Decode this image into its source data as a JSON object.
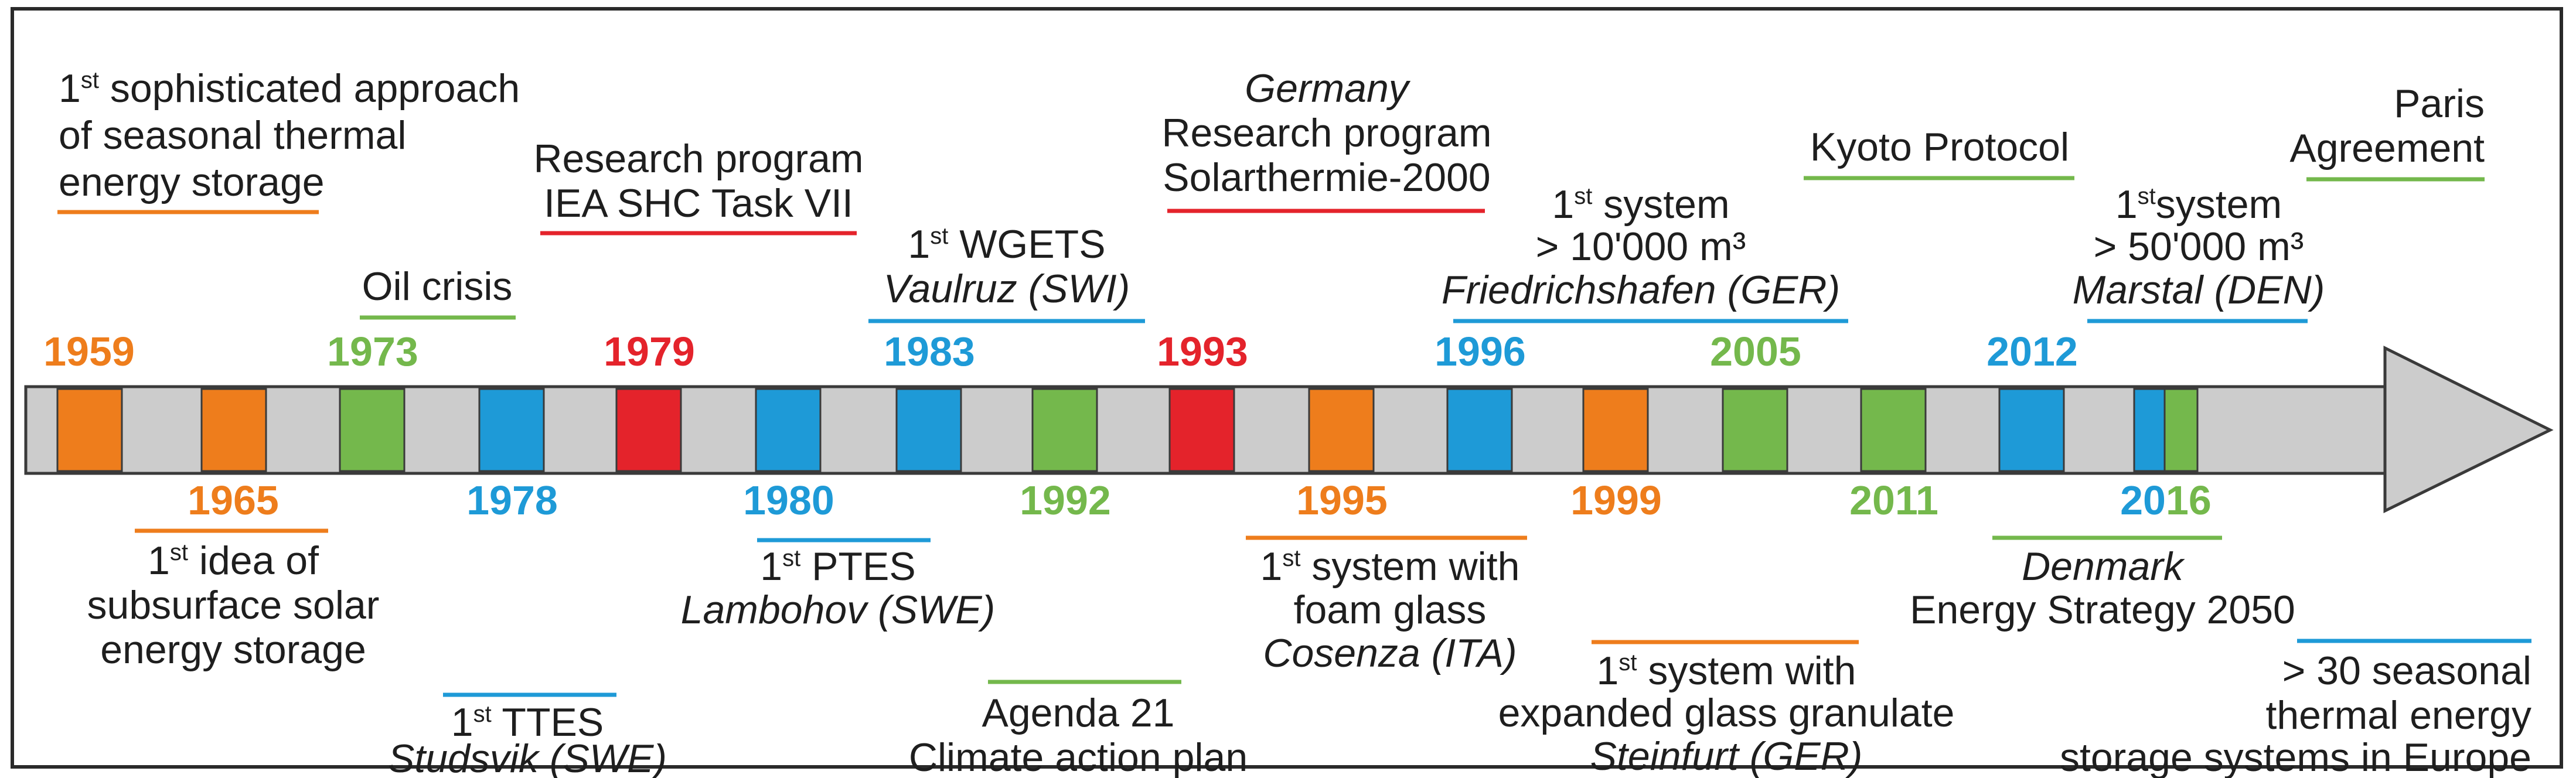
{
  "colors": {
    "orange": "#ee7d1c",
    "green": "#74b84c",
    "blue": "#1e9ad7",
    "red": "#e4232b",
    "gray": "#cccccc",
    "outline": "#3a3a3a"
  },
  "years": {
    "y1959": "1959",
    "y1965": "1965",
    "y1973": "1973",
    "y1978": "1978",
    "y1979": "1979",
    "y1980": "1980",
    "y1983": "1983",
    "y1992": "1992",
    "y1993": "1993",
    "y1995": "1995",
    "y1996": "1996",
    "y1999": "1999",
    "y2005": "2005",
    "y2011": "2011",
    "y2012": "2012",
    "y2016a": "20",
    "y2016b": "16"
  },
  "events_above": {
    "sophisticated": {
      "sup": "st",
      "line1_rest": " sophisticated approach",
      "line2": "of seasonal thermal",
      "line3": "energy storage"
    },
    "oil_crisis": {
      "line1": "Oil crisis"
    },
    "iea": {
      "line1": "Research program",
      "line2": "IEA SHC Task VII"
    },
    "wgets": {
      "sup": "st",
      "line1_rest": " WGETS",
      "line2": "Vaulruz (SWI)"
    },
    "germany": {
      "line1": "Germany",
      "line2": "Research program",
      "line3": "Solarthermie-2000"
    },
    "big10000": {
      "sup": "st",
      "line1_rest": " system",
      "line2": "> 10'000 m³",
      "line3": "Friedrichshafen (GER)"
    },
    "kyoto": {
      "line1": "Kyoto Protocol"
    },
    "big50000": {
      "sup": "st",
      "line1_rest": "system",
      "line2": "> 50'000 m³",
      "line3": "Marstal (DEN)"
    },
    "paris": {
      "line1": "Paris",
      "line2": "Agreement"
    }
  },
  "events_below": {
    "subsurface": {
      "sup": "st",
      "line1_rest": " idea of",
      "line2": "subsurface solar",
      "line3": "energy storage"
    },
    "ttes": {
      "sup": "st",
      "line1_rest": " TTES",
      "line2": "Studsvik (SWE)"
    },
    "ptes": {
      "sup": "st",
      "line1_rest": " PTES",
      "line2": "Lambohov (SWE)"
    },
    "agenda": {
      "line1": "Agenda 21",
      "line2": "Climate action plan"
    },
    "foam": {
      "sup": "st",
      "line1_rest": " system with",
      "line2": "foam glass",
      "line3": "Cosenza (ITA)"
    },
    "expanded": {
      "sup": "st",
      "line1_rest": " system with",
      "line2": "expanded glass granulate",
      "line3": "Steinfurt (GER)"
    },
    "denmark": {
      "line1": "Denmark",
      "line2": "Energy Strategy 2050"
    },
    "seasonal30": {
      "line1": "> 30 seasonal",
      "line2": "thermal energy",
      "line3": "storage systems in Europe"
    }
  },
  "common": {
    "one": "1"
  }
}
